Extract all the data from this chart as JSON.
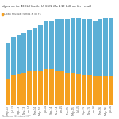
{
  "title": "dges up to $430 billion for U.S. CLOs, $112 billion for retail",
  "source": "Thomson Reuters LPC",
  "legend_label_orange": "Loan mutual funds & ETFs",
  "color_blue": "#5bafd6",
  "color_orange": "#f5a020",
  "background_color": "#ffffff",
  "categories": [
    "May-13",
    "Jul-13",
    "Sep-13",
    "Nov-13",
    "Jan-14",
    "Mar-14",
    "May-14",
    "Jul-14",
    "Sep-14",
    "Nov-14",
    "Jan-15",
    "Mar-15",
    "May-15",
    "Jul-15",
    "Sep-15",
    "Nov-15",
    "Jan-16",
    "Mar-16",
    "May-16",
    "Jul-16"
  ],
  "blue_values": [
    30,
    32,
    33,
    34,
    35,
    36,
    38,
    40,
    41,
    43,
    44,
    45,
    46,
    47,
    47,
    47,
    47,
    48,
    49,
    49
  ],
  "orange_values": [
    22,
    25,
    26,
    27,
    28,
    29,
    29,
    30,
    30,
    29,
    28,
    27,
    27,
    26,
    25,
    25,
    24,
    24,
    24,
    24
  ],
  "ylim": [
    0,
    80
  ],
  "figsize": [
    1.5,
    1.5
  ],
  "dpi": 100
}
